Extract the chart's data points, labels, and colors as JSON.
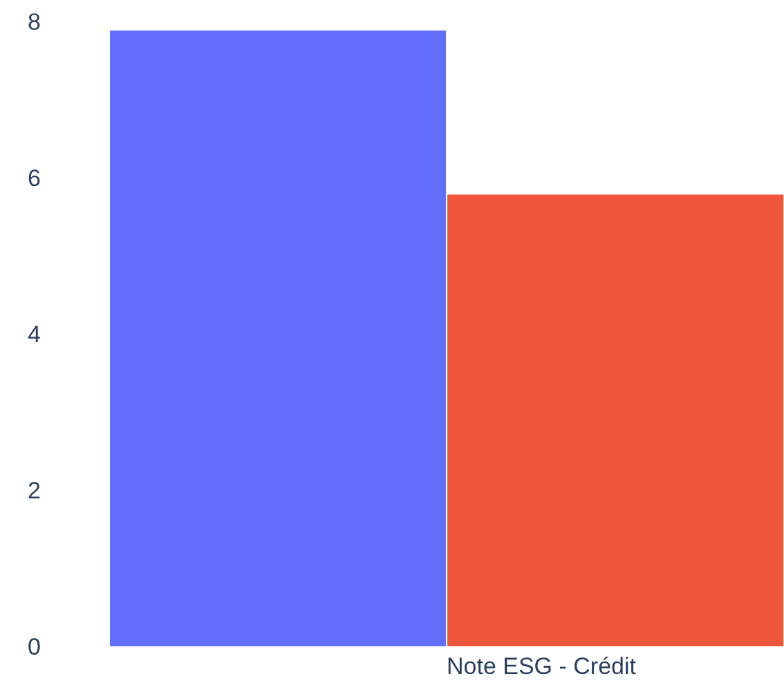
{
  "chart_data": {
    "type": "bar",
    "categories": [
      null,
      "Note ESG - Crédit"
    ],
    "values": [
      7.9,
      5.8
    ],
    "colors": [
      "#636efa",
      "#ef553b"
    ],
    "ylim": [
      0,
      8
    ],
    "yticks": [
      0,
      2,
      4,
      6,
      8
    ],
    "grid": false
  }
}
